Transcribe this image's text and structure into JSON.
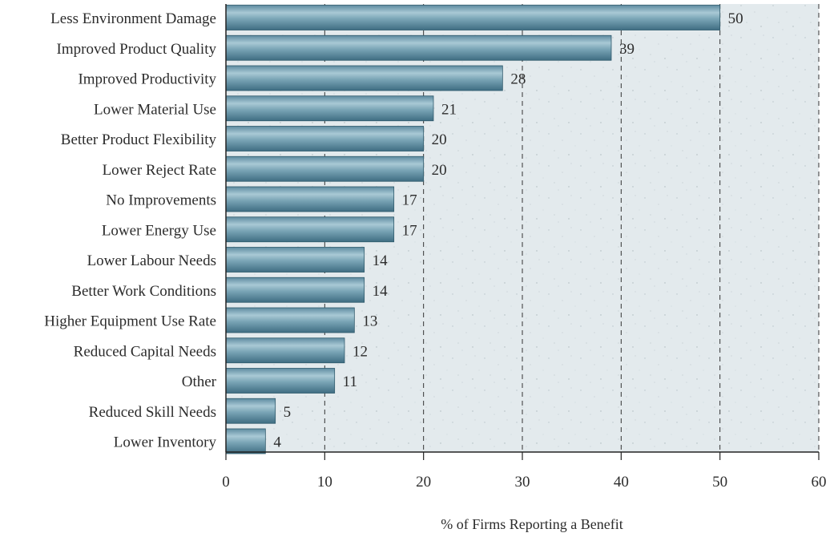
{
  "chart_data": {
    "type": "bar",
    "orientation": "horizontal",
    "title": "",
    "xlabel": "% of Firms Reporting a Benefit",
    "ylabel": "",
    "xlim": [
      0,
      60
    ],
    "xticks": [
      0,
      10,
      20,
      30,
      40,
      50,
      60
    ],
    "grid": "vertical dashed gridlines",
    "categories": [
      "Less Environment Damage",
      "Improved Product Quality",
      "Improved Productivity",
      "Lower Material Use",
      "Better Product Flexibility",
      "Lower Reject Rate",
      "No Improvements",
      "Lower Energy Use",
      "Lower Labour Needs",
      "Better Work Conditions",
      "Higher Equipment Use Rate",
      "Reduced Capital Needs",
      "Other",
      "Reduced Skill Needs",
      "Lower Inventory"
    ],
    "values": [
      50,
      39,
      28,
      21,
      20,
      20,
      17,
      17,
      14,
      14,
      13,
      12,
      11,
      5,
      4
    ],
    "colors": {
      "bar_dark": "#4f7d91",
      "bar_mid": "#87aebd",
      "bar_light": "#c5dbe3",
      "plot_background": "#e2e9ec",
      "grid": "#333333",
      "text": "#2c2c2c"
    }
  }
}
